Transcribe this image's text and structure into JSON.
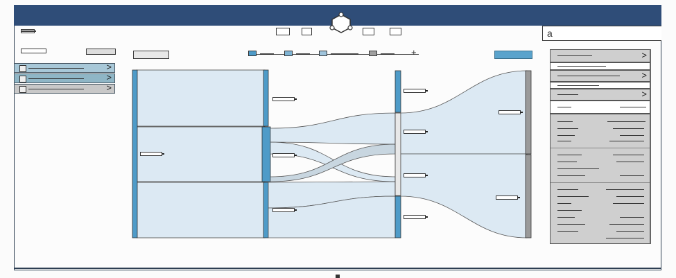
{
  "search": {
    "query": "a"
  },
  "colors": {
    "titlebar": "#2f4d78",
    "accent": "#4e9bc8",
    "flow": "#dce9f3",
    "panel_gray": "#cfcfcf",
    "panel_light": "#e6e6e6"
  },
  "icons": {
    "logo": "network-hexagon-icon",
    "chevron": "chevron-right-icon",
    "search": "search-icon"
  },
  "chevron_glyph": ">",
  "legend_plus": "+",
  "sidebar": {
    "items": [
      {
        "fill": "#a8c8d8"
      },
      {
        "fill": "#8fb6c6"
      },
      {
        "fill": "#c8c8c8"
      }
    ]
  }
}
